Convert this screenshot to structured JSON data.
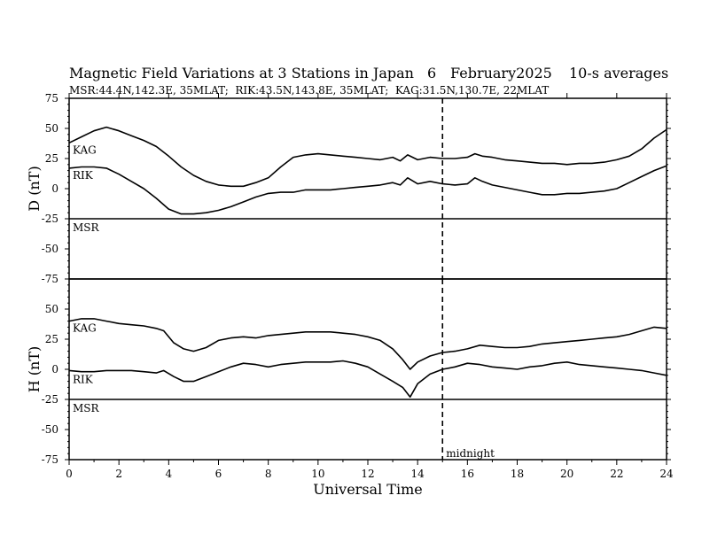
{
  "chart_data": {
    "type": "line",
    "title": "Magnetic Field Variations at 3 Stations in Japan",
    "date_day": "6",
    "date_month_year": "February2025",
    "averaging": "10-s averages",
    "subtitle": "MSR:44.4N,142.3E, 35MLAT;  RIK:43.5N,143.8E, 35MLAT;  KAG:31.5N,130.7E, 22MLAT",
    "xlabel": "Universal Time",
    "xlim": [
      0,
      24
    ],
    "x_ticks": [
      0,
      2,
      4,
      6,
      8,
      10,
      12,
      14,
      16,
      18,
      20,
      22,
      24
    ],
    "ylim": [
      -75,
      75
    ],
    "y_ticks": [
      75,
      50,
      25,
      0,
      -25,
      -50,
      -75
    ],
    "grid": false,
    "annotation": {
      "x": 15,
      "style": "dashed",
      "label": "midnight"
    },
    "panels": [
      {
        "ylabel": "D (nT)",
        "baseline_label": "MSR",
        "series": [
          {
            "name": "KAG",
            "x": [
              0,
              0.5,
              1,
              1.5,
              2,
              2.5,
              3,
              3.5,
              4,
              4.5,
              5,
              5.5,
              6,
              6.5,
              7,
              7.5,
              8,
              8.5,
              9,
              9.5,
              10,
              10.5,
              11,
              11.5,
              12,
              12.5,
              13,
              13.3,
              13.6,
              14,
              14.5,
              15,
              15.5,
              16,
              16.3,
              16.6,
              17,
              17.5,
              18,
              18.5,
              19,
              19.5,
              20,
              20.5,
              21,
              21.5,
              22,
              22.5,
              23,
              23.5,
              24
            ],
            "values": [
              38,
              43,
              48,
              51,
              48,
              44,
              40,
              35,
              27,
              18,
              11,
              6,
              3,
              2,
              2,
              5,
              9,
              18,
              26,
              28,
              29,
              28,
              27,
              26,
              25,
              24,
              26,
              23,
              28,
              24,
              26,
              25,
              25,
              26,
              29,
              27,
              26,
              24,
              23,
              22,
              21,
              21,
              20,
              21,
              21,
              22,
              24,
              27,
              33,
              42,
              49
            ]
          },
          {
            "name": "RIK",
            "x": [
              0,
              0.5,
              1,
              1.5,
              2,
              2.5,
              3,
              3.5,
              4,
              4.5,
              5,
              5.5,
              6,
              6.5,
              7,
              7.5,
              8,
              8.5,
              9,
              9.5,
              10,
              10.5,
              11,
              11.5,
              12,
              12.5,
              13,
              13.3,
              13.6,
              14,
              14.5,
              15,
              15.5,
              16,
              16.3,
              16.6,
              17,
              17.5,
              18,
              18.5,
              19,
              19.5,
              20,
              20.5,
              21,
              21.5,
              22,
              22.5,
              23,
              23.5,
              24
            ],
            "values": [
              17,
              18,
              18,
              17,
              12,
              6,
              0,
              -8,
              -17,
              -21,
              -21,
              -20,
              -18,
              -15,
              -11,
              -7,
              -4,
              -3,
              -3,
              -1,
              -1,
              -1,
              0,
              1,
              2,
              3,
              5,
              3,
              9,
              4,
              6,
              4,
              3,
              4,
              9,
              6,
              3,
              1,
              -1,
              -3,
              -5,
              -5,
              -4,
              -4,
              -3,
              -2,
              0,
              5,
              10,
              15,
              19
            ]
          }
        ]
      },
      {
        "ylabel": "H (nT)",
        "baseline_label": "MSR",
        "series": [
          {
            "name": "KAG",
            "x": [
              0,
              0.5,
              1,
              1.5,
              2,
              2.5,
              3,
              3.5,
              3.8,
              4.2,
              4.6,
              5,
              5.5,
              6,
              6.5,
              7,
              7.5,
              8,
              8.5,
              9,
              9.5,
              10,
              10.5,
              11,
              11.5,
              12,
              12.5,
              13,
              13.4,
              13.7,
              14,
              14.5,
              15,
              15.5,
              16,
              16.5,
              17,
              17.5,
              18,
              18.5,
              19,
              19.5,
              20,
              20.5,
              21,
              21.5,
              22,
              22.5,
              23,
              23.5,
              24
            ],
            "values": [
              40,
              42,
              42,
              40,
              38,
              37,
              36,
              34,
              32,
              22,
              17,
              15,
              18,
              24,
              26,
              27,
              26,
              28,
              29,
              30,
              31,
              31,
              31,
              30,
              29,
              27,
              24,
              17,
              8,
              0,
              6,
              11,
              14,
              15,
              17,
              20,
              19,
              18,
              18,
              19,
              21,
              22,
              23,
              24,
              25,
              26,
              27,
              29,
              32,
              35,
              34
            ]
          },
          {
            "name": "RIK",
            "x": [
              0,
              0.5,
              1,
              1.5,
              2,
              2.5,
              3,
              3.5,
              3.8,
              4.2,
              4.6,
              5,
              5.5,
              6,
              6.5,
              7,
              7.5,
              8,
              8.5,
              9,
              9.5,
              10,
              10.5,
              11,
              11.5,
              12,
              12.5,
              13,
              13.4,
              13.7,
              14,
              14.5,
              15,
              15.5,
              16,
              16.5,
              17,
              17.5,
              18,
              18.5,
              19,
              19.5,
              20,
              20.5,
              21,
              21.5,
              22,
              22.5,
              23,
              23.5,
              24
            ],
            "values": [
              -1,
              -2,
              -2,
              -1,
              -1,
              -1,
              -2,
              -3,
              -1,
              -6,
              -10,
              -10,
              -6,
              -2,
              2,
              5,
              4,
              2,
              4,
              5,
              6,
              6,
              6,
              7,
              5,
              2,
              -4,
              -10,
              -15,
              -23,
              -12,
              -4,
              0,
              2,
              5,
              4,
              2,
              1,
              0,
              2,
              3,
              5,
              6,
              4,
              3,
              2,
              1,
              0,
              -1,
              -3,
              -5
            ]
          }
        ]
      }
    ]
  }
}
